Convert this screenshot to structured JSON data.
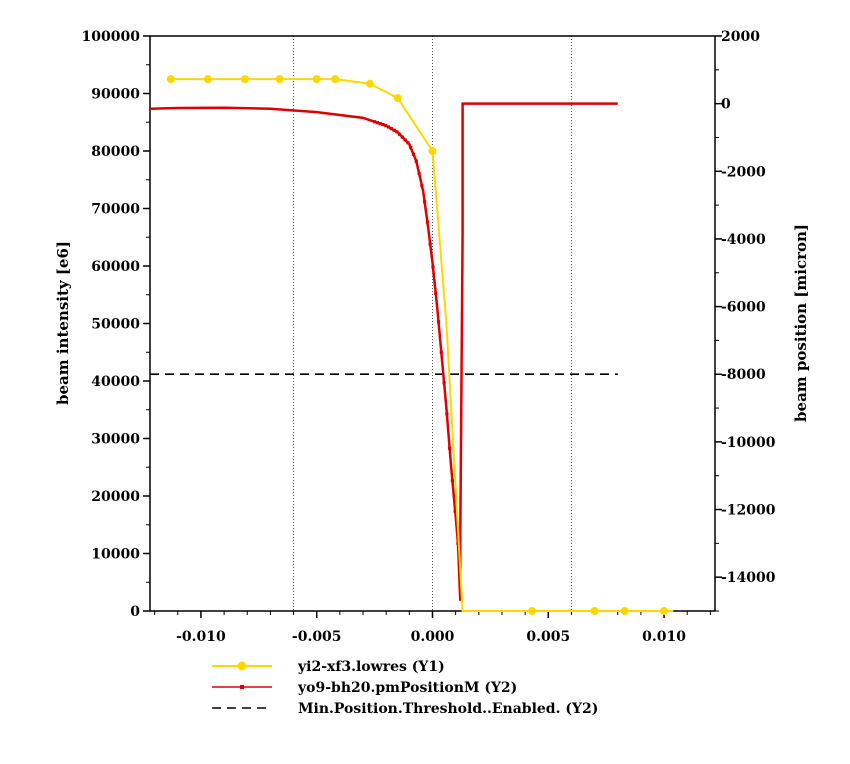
{
  "chart_data": {
    "type": "line",
    "xlim": [
      -0.0122,
      0.0122
    ],
    "x_ticks": [
      "-0.010",
      "-0.005",
      "0.000",
      "0.005",
      "0.010"
    ],
    "x_tick_values": [
      -0.01,
      -0.005,
      0.0,
      0.005,
      0.01
    ],
    "y1": {
      "label": "beam intensity [e6]",
      "lim": [
        0,
        100000
      ],
      "ticks": [
        "0",
        "10000",
        "20000",
        "30000",
        "40000",
        "50000",
        "60000",
        "70000",
        "80000",
        "90000",
        "100000"
      ],
      "tick_values": [
        0,
        10000,
        20000,
        30000,
        40000,
        50000,
        60000,
        70000,
        80000,
        90000,
        100000
      ]
    },
    "y2": {
      "label": "beam position [micron]",
      "lim": [
        -15000,
        2000
      ],
      "ticks": [
        "2000",
        "0",
        "-2000",
        "-4000",
        "-6000",
        "-8000",
        "-10000",
        "-12000",
        "-14000"
      ],
      "tick_values": [
        2000,
        0,
        -2000,
        -4000,
        -6000,
        -8000,
        -10000,
        -12000,
        -14000
      ]
    },
    "vertical_gridlines": [
      -0.006,
      0.0,
      0.006
    ],
    "series": [
      {
        "name": "yi2-xf3.lowres (Y1)",
        "axis": "y1",
        "color": "#ffd700",
        "points": [
          [
            -0.0113,
            92500
          ],
          [
            -0.0097,
            92500
          ],
          [
            -0.0081,
            92500
          ],
          [
            -0.0066,
            92500
          ],
          [
            -0.005,
            92500
          ],
          [
            -0.0042,
            92500
          ],
          [
            -0.0027,
            91700
          ],
          [
            -0.0015,
            89200
          ],
          [
            0.0,
            80000
          ],
          [
            0.0006,
            50000
          ],
          [
            0.0013,
            0
          ],
          [
            0.004,
            0
          ],
          [
            0.0043,
            0
          ],
          [
            0.0066,
            0
          ],
          [
            0.007,
            0
          ],
          [
            0.0083,
            0
          ],
          [
            0.01,
            0
          ],
          [
            0.0104,
            0
          ]
        ],
        "markers": [
          [
            -0.0113,
            92500
          ],
          [
            -0.0097,
            92500
          ],
          [
            -0.0081,
            92500
          ],
          [
            -0.0066,
            92500
          ],
          [
            -0.005,
            92500
          ],
          [
            -0.0042,
            92500
          ],
          [
            -0.0027,
            91700
          ],
          [
            -0.0015,
            89200
          ],
          [
            0.0,
            80000
          ],
          [
            0.0043,
            0
          ],
          [
            0.007,
            0
          ],
          [
            0.0083,
            0
          ],
          [
            0.01,
            0
          ]
        ]
      },
      {
        "name": "yo9-bh20.pmPositionM (Y2)",
        "axis": "y2",
        "color": "#e00000",
        "points": [
          [
            -0.0122,
            -150
          ],
          [
            -0.011,
            -130
          ],
          [
            -0.009,
            -120
          ],
          [
            -0.007,
            -150
          ],
          [
            -0.005,
            -250
          ],
          [
            -0.003,
            -420
          ],
          [
            -0.002,
            -650
          ],
          [
            -0.0015,
            -850
          ],
          [
            -0.001,
            -1200
          ],
          [
            -0.0007,
            -1700
          ],
          [
            -0.0004,
            -2600
          ],
          [
            -0.0002,
            -3600
          ],
          [
            0.0,
            -4700
          ],
          [
            0.0002,
            -6000
          ],
          [
            0.0004,
            -7500
          ],
          [
            0.0006,
            -9000
          ],
          [
            0.0008,
            -10700
          ],
          [
            0.001,
            -12200
          ],
          [
            0.0011,
            -13000
          ],
          [
            0.0012,
            -14700
          ],
          [
            0.0012,
            -12800
          ],
          [
            0.0013,
            -3800
          ],
          [
            0.0013,
            0
          ],
          [
            0.008,
            0
          ]
        ]
      },
      {
        "name": "Min.Position.Threshold..Enabled. (Y2)",
        "axis": "y2",
        "color": "#000000",
        "points": [
          [
            -0.0122,
            -8000
          ],
          [
            0.008,
            -8000
          ]
        ]
      }
    ],
    "legend_position": "bottom"
  }
}
